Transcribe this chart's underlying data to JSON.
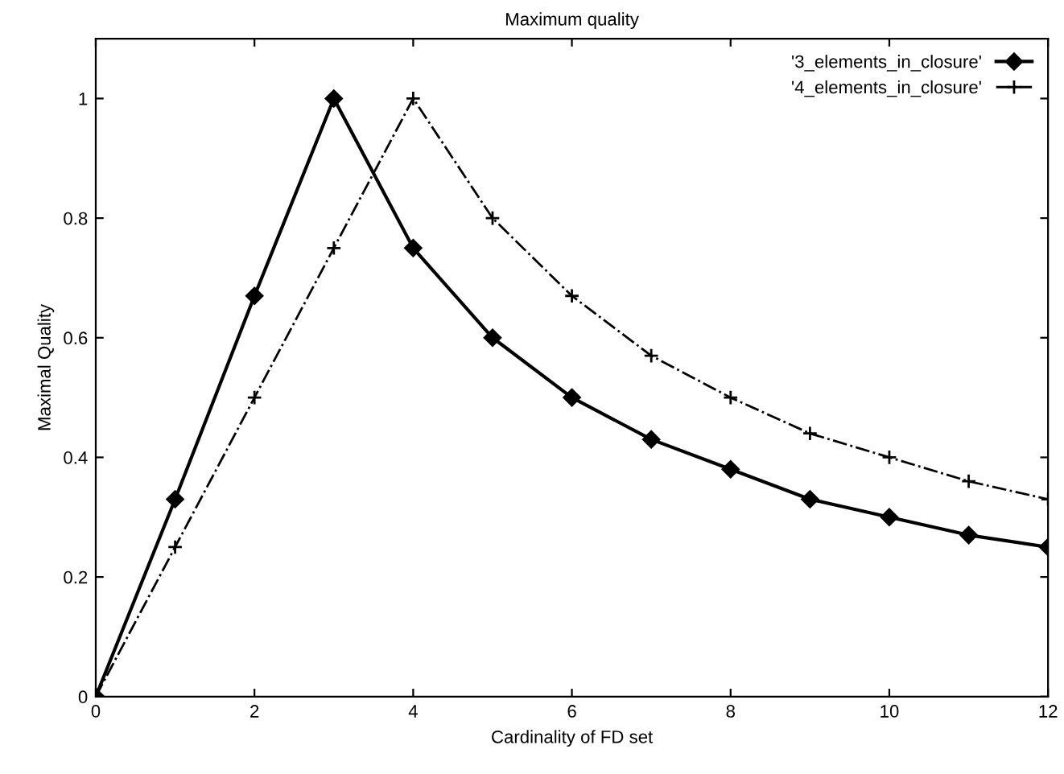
{
  "chart_data": {
    "type": "line",
    "title": "Maximum quality",
    "xlabel": "Cardinality of FD set",
    "ylabel": "Maximal Quality",
    "x": [
      0,
      1,
      2,
      3,
      4,
      5,
      6,
      7,
      8,
      9,
      10,
      11,
      12
    ],
    "series": [
      {
        "name": "'3_elements_in_closure'",
        "color": "#000000",
        "marker": "diamond",
        "line_style": "solid",
        "values": [
          0,
          0.33,
          0.67,
          1,
          0.75,
          0.6,
          0.5,
          0.43,
          0.38,
          0.33,
          0.3,
          0.27,
          0.25
        ]
      },
      {
        "name": "'4_elements_in_closure'",
        "color": "#000000",
        "marker": "cross",
        "line_style": "dashdot",
        "values": [
          0,
          0.25,
          0.5,
          0.75,
          1,
          0.8,
          0.67,
          0.57,
          0.5,
          0.44,
          0.4,
          0.36,
          0.33
        ]
      }
    ],
    "xlim": [
      0,
      12
    ],
    "xticks": [
      0,
      2,
      4,
      6,
      8,
      10,
      12
    ],
    "ylim": [
      0,
      1.1
    ],
    "yticks": [
      0,
      0.2,
      0.4,
      0.6,
      0.8,
      1
    ],
    "grid": false,
    "legend": "top right"
  }
}
